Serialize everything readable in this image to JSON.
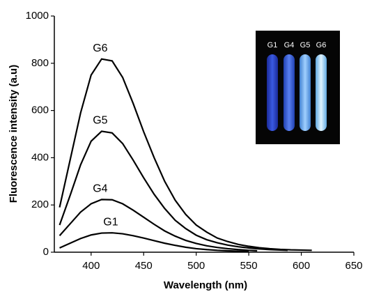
{
  "chart_data": {
    "type": "line",
    "xlabel": "Wavelength (nm)",
    "ylabel": "Fluorescence intensity (a.u)",
    "xlim": [
      365,
      650
    ],
    "xticks": [
      400,
      450,
      500,
      550,
      600,
      650
    ],
    "ylim": [
      0,
      1000
    ],
    "yticks": [
      0,
      200,
      400,
      600,
      800,
      1000
    ],
    "inset_labels": [
      "G1",
      "G4",
      "G5",
      "G6"
    ],
    "series": [
      {
        "name": "G6",
        "color": "#000000",
        "x": [
          370,
          380,
          390,
          400,
          410,
          420,
          430,
          440,
          450,
          460,
          470,
          480,
          490,
          500,
          510,
          520,
          530,
          540,
          550,
          560,
          570,
          580,
          590,
          600,
          610
        ],
        "values": [
          190,
          390,
          590,
          750,
          818,
          810,
          740,
          630,
          510,
          400,
          300,
          220,
          160,
          115,
          85,
          60,
          45,
          33,
          25,
          19,
          15,
          12,
          10,
          9,
          8
        ]
      },
      {
        "name": "G5",
        "color": "#000000",
        "x": [
          370,
          380,
          390,
          400,
          410,
          420,
          430,
          440,
          450,
          460,
          470,
          480,
          490,
          500,
          510,
          520,
          530,
          540,
          550,
          560,
          570,
          580,
          587
        ],
        "values": [
          115,
          240,
          370,
          470,
          512,
          505,
          460,
          390,
          315,
          245,
          185,
          135,
          100,
          72,
          53,
          40,
          30,
          23,
          18,
          14,
          11,
          9,
          8
        ]
      },
      {
        "name": "G4",
        "color": "#000000",
        "x": [
          370,
          380,
          390,
          400,
          410,
          420,
          430,
          440,
          450,
          460,
          470,
          480,
          490,
          500,
          510,
          520,
          530,
          540,
          550,
          558
        ],
        "values": [
          70,
          120,
          170,
          205,
          223,
          222,
          205,
          178,
          148,
          118,
          90,
          68,
          50,
          37,
          27,
          20,
          15,
          11,
          8,
          6
        ]
      },
      {
        "name": "G1",
        "color": "#000000",
        "x": [
          370,
          380,
          390,
          400,
          410,
          420,
          430,
          440,
          450,
          460,
          470,
          480,
          490,
          500,
          510,
          520,
          530,
          540,
          550
        ],
        "values": [
          18,
          38,
          58,
          73,
          81,
          82,
          78,
          70,
          60,
          49,
          38,
          29,
          21,
          15,
          11,
          8,
          6,
          4,
          3
        ]
      }
    ]
  }
}
